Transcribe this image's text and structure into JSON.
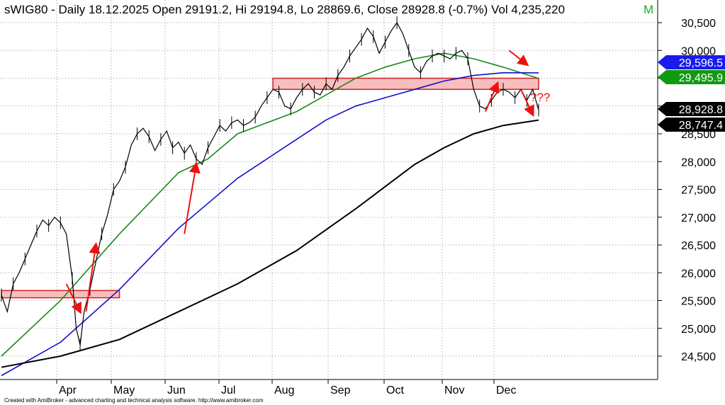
{
  "header": {
    "title": "sWIG80 - Daily 18.12.2025 Open 29191.2, Hi 29194.8, Lo 28869.6, Close 28928.8 (-0.7%) Vol 4,235,220",
    "marker": "M"
  },
  "footer": {
    "credit": "Created with AmiBroker - advanced charting and technical analysis software. http://www.amibroker.com"
  },
  "annotation": {
    "text": "???"
  },
  "colors": {
    "price": "#000000",
    "ma_green": "#1a8a1a",
    "ma_blue": "#1010cc",
    "ma_black": "#000000",
    "zone_fill": "#f7b3b3",
    "zone_stroke": "#cc2222",
    "arrow": "#ee1111",
    "grid": "#9a9a9a",
    "title_marker": "#22aa22"
  },
  "chart_data": {
    "type": "line",
    "title": "sWIG80 - Daily 18.12.2025",
    "ylim": [
      24000,
      30650
    ],
    "y_ticks": [
      "30,500",
      "30,000",
      "29,500",
      "29,000",
      "28,500",
      "28,000",
      "27,500",
      "27,000",
      "26,500",
      "26,000",
      "25,500",
      "25,000",
      "24,500"
    ],
    "x_ticks": [
      "Apr",
      "May",
      "Jun",
      "Jul",
      "Aug",
      "Sep",
      "Oct",
      "Nov",
      "Dec"
    ],
    "price_series": {
      "name": "sWIG80",
      "points": [
        [
          0,
          25600
        ],
        [
          3,
          25300
        ],
        [
          6,
          25800
        ],
        [
          9,
          26000
        ],
        [
          12,
          26250
        ],
        [
          15,
          26500
        ],
        [
          18,
          26750
        ],
        [
          21,
          26950
        ],
        [
          24,
          26850
        ],
        [
          27,
          27000
        ],
        [
          30,
          26900
        ],
        [
          33,
          26700
        ],
        [
          36,
          25900
        ],
        [
          38,
          25000
        ],
        [
          40,
          24700
        ],
        [
          42,
          25300
        ],
        [
          45,
          25700
        ],
        [
          48,
          26200
        ],
        [
          51,
          26700
        ],
        [
          54,
          27050
        ],
        [
          57,
          27500
        ],
        [
          60,
          27650
        ],
        [
          63,
          27900
        ],
        [
          66,
          28300
        ],
        [
          69,
          28500
        ],
        [
          72,
          28600
        ],
        [
          75,
          28450
        ],
        [
          78,
          28200
        ],
        [
          81,
          28400
        ],
        [
          84,
          28550
        ],
        [
          87,
          28250
        ],
        [
          90,
          28350
        ],
        [
          93,
          28150
        ],
        [
          96,
          28300
        ],
        [
          99,
          28050
        ],
        [
          102,
          27950
        ],
        [
          105,
          28250
        ],
        [
          108,
          28450
        ],
        [
          111,
          28650
        ],
        [
          114,
          28550
        ],
        [
          117,
          28700
        ],
        [
          120,
          28750
        ],
        [
          123,
          28650
        ],
        [
          126,
          28700
        ],
        [
          129,
          28800
        ],
        [
          132,
          29000
        ],
        [
          135,
          29150
        ],
        [
          138,
          29300
        ],
        [
          141,
          29250
        ],
        [
          144,
          29000
        ],
        [
          147,
          28950
        ],
        [
          150,
          29150
        ],
        [
          153,
          29300
        ],
        [
          156,
          29400
        ],
        [
          159,
          29250
        ],
        [
          162,
          29200
        ],
        [
          165,
          29400
        ],
        [
          168,
          29300
        ],
        [
          171,
          29550
        ],
        [
          174,
          29700
        ],
        [
          177,
          29900
        ],
        [
          180,
          30050
        ],
        [
          183,
          30200
        ],
        [
          186,
          30400
        ],
        [
          189,
          30250
        ],
        [
          192,
          29950
        ],
        [
          195,
          30150
        ],
        [
          198,
          30350
        ],
        [
          201,
          30500
        ],
        [
          204,
          30300
        ],
        [
          207,
          30000
        ],
        [
          210,
          29700
        ],
        [
          213,
          29600
        ],
        [
          216,
          29800
        ],
        [
          219,
          29900
        ],
        [
          222,
          29950
        ],
        [
          225,
          29900
        ],
        [
          228,
          29850
        ],
        [
          231,
          29950
        ],
        [
          234,
          30000
        ],
        [
          237,
          29850
        ],
        [
          240,
          29300
        ],
        [
          243,
          29000
        ],
        [
          246,
          28950
        ],
        [
          249,
          29100
        ],
        [
          252,
          29250
        ],
        [
          255,
          29300
        ],
        [
          258,
          29250
        ],
        [
          261,
          29150
        ],
        [
          264,
          29300
        ],
        [
          267,
          29100
        ],
        [
          270,
          29300
        ],
        [
          273,
          28928.8
        ]
      ]
    },
    "series": [
      {
        "name": "MA green",
        "points": [
          [
            0,
            24500
          ],
          [
            30,
            25500
          ],
          [
            60,
            26700
          ],
          [
            90,
            27800
          ],
          [
            105,
            28050
          ],
          [
            120,
            28500
          ],
          [
            135,
            28700
          ],
          [
            150,
            28900
          ],
          [
            165,
            29200
          ],
          [
            180,
            29500
          ],
          [
            195,
            29700
          ],
          [
            210,
            29850
          ],
          [
            225,
            29950
          ],
          [
            240,
            29850
          ],
          [
            255,
            29700
          ],
          [
            273,
            29495.9
          ]
        ]
      },
      {
        "name": "MA blue",
        "points": [
          [
            0,
            24150
          ],
          [
            30,
            24750
          ],
          [
            60,
            25700
          ],
          [
            90,
            26800
          ],
          [
            120,
            27700
          ],
          [
            150,
            28400
          ],
          [
            165,
            28750
          ],
          [
            180,
            29000
          ],
          [
            195,
            29150
          ],
          [
            210,
            29300
          ],
          [
            225,
            29450
          ],
          [
            240,
            29550
          ],
          [
            255,
            29600
          ],
          [
            273,
            29596.5
          ]
        ]
      },
      {
        "name": "MA black",
        "points": [
          [
            0,
            24300
          ],
          [
            30,
            24500
          ],
          [
            60,
            24800
          ],
          [
            90,
            25300
          ],
          [
            120,
            25800
          ],
          [
            150,
            26400
          ],
          [
            180,
            27150
          ],
          [
            195,
            27550
          ],
          [
            210,
            27950
          ],
          [
            225,
            28250
          ],
          [
            240,
            28500
          ],
          [
            255,
            28650
          ],
          [
            273,
            28747.4
          ]
        ]
      }
    ],
    "last_values": [
      {
        "value": 29596.5,
        "label": "29,596.5"
      },
      {
        "value": 29495.9,
        "label": "29,495.9"
      },
      {
        "value": 28928.8,
        "label": "28,928.8"
      },
      {
        "value": 28747.4,
        "label": "28,747.4"
      }
    ],
    "zones": [
      {
        "y_low": 25550,
        "y_high": 25680,
        "x_from": 0,
        "x_to": 60
      },
      {
        "y_low": 29300,
        "y_high": 29500,
        "x_from": 138,
        "x_to": 273
      }
    ],
    "arrows": [
      {
        "from": [
          33,
          25800
        ],
        "to": [
          40,
          25300
        ]
      },
      {
        "from": [
          43,
          25300
        ],
        "to": [
          48,
          26500
        ]
      },
      {
        "from": [
          93,
          26700
        ],
        "to": [
          99,
          27950
        ]
      },
      {
        "from": [
          246,
          28900
        ],
        "to": [
          252,
          29400
        ]
      },
      {
        "from": [
          258,
          30000
        ],
        "to": [
          267,
          29750
        ]
      },
      {
        "from": [
          264,
          29300
        ],
        "to": [
          270,
          28850
        ]
      }
    ]
  }
}
